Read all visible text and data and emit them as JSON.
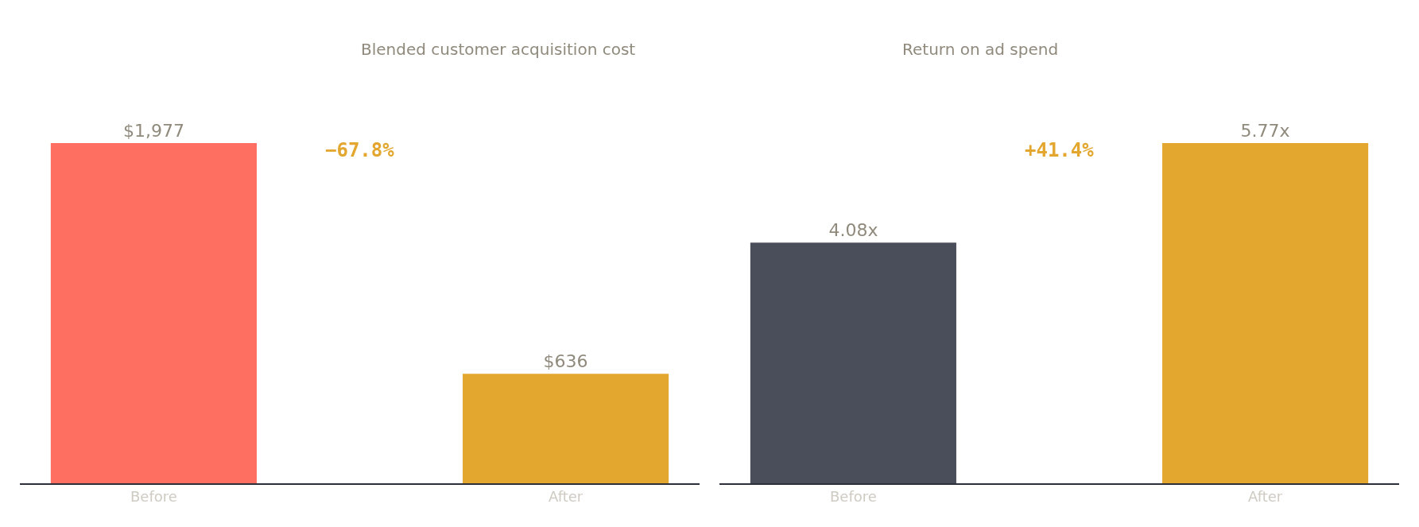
{
  "chart_data": [
    {
      "type": "bar",
      "title": "Blended customer acquisition cost",
      "categories": [
        "Before",
        "After"
      ],
      "values": [
        1977,
        636
      ],
      "colors": [
        "#ff6f61",
        "#e3a62f"
      ],
      "value_labels": [
        "$1,977",
        "$636"
      ],
      "annotations": [
        "−67.8%"
      ],
      "tick_labels": "x"
    },
    {
      "type": "bar",
      "title": "Return on ad spend",
      "categories": [
        "Before",
        "After"
      ],
      "values": [
        4.08,
        5.77
      ],
      "colors": [
        "#4a4d5a",
        "#e3a62f"
      ],
      "value_labels": [
        "4.08x",
        "5.77x"
      ],
      "annotations": [
        "+41.4%"
      ],
      "tick_labels": "x"
    }
  ]
}
